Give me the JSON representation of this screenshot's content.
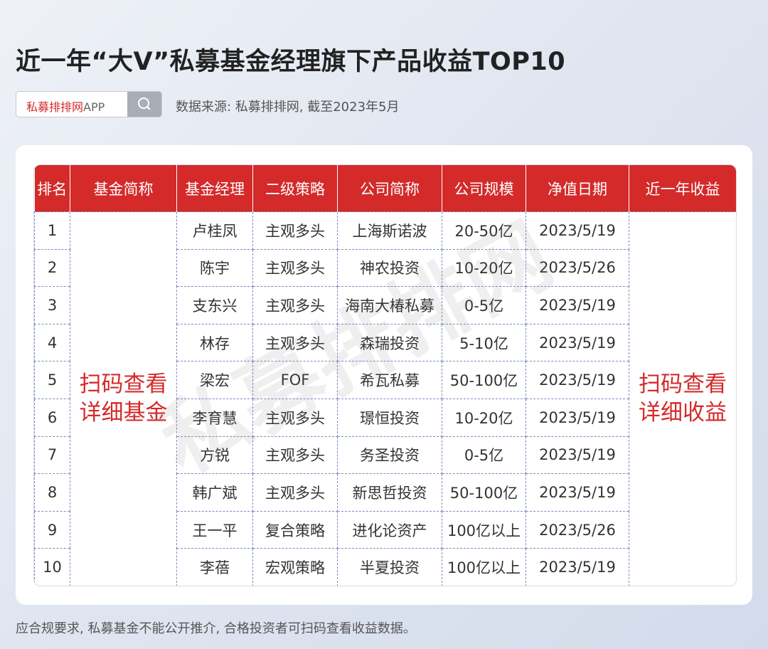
{
  "header": {
    "title": "近一年“大V”私募基金经理旗下产品收益TOP10",
    "search_brand": "私募排排网",
    "search_suffix": "APP",
    "source": "数据来源: 私募排排网, 截至2023年5月"
  },
  "table": {
    "columns": [
      "排名",
      "基金简称",
      "基金经理",
      "二级策略",
      "公司简称",
      "公司规模",
      "净值日期",
      "近一年收益"
    ],
    "fund_name_note": [
      "扫码查看",
      "详细基金"
    ],
    "return_note": [
      "扫码查看",
      "详细收益"
    ],
    "rows": [
      [
        "1",
        "卢桂凤",
        "主观多头",
        "上海斯诺波",
        "20-50亿",
        "2023/5/19"
      ],
      [
        "2",
        "陈宇",
        "主观多头",
        "神农投资",
        "10-20亿",
        "2023/5/26"
      ],
      [
        "3",
        "支东兴",
        "主观多头",
        "海南大椿私募",
        "0-5亿",
        "2023/5/19"
      ],
      [
        "4",
        "林存",
        "主观多头",
        "森瑞投资",
        "5-10亿",
        "2023/5/19"
      ],
      [
        "5",
        "梁宏",
        "FOF",
        "希瓦私募",
        "50-100亿",
        "2023/5/19"
      ],
      [
        "6",
        "李育慧",
        "主观多头",
        "璟恒投资",
        "10-20亿",
        "2023/5/19"
      ],
      [
        "7",
        "方锐",
        "主观多头",
        "务圣投资",
        "0-5亿",
        "2023/5/19"
      ],
      [
        "8",
        "韩广斌",
        "主观多头",
        "新思哲投资",
        "50-100亿",
        "2023/5/19"
      ],
      [
        "9",
        "王一平",
        "复合策略",
        "进化论资产",
        "100亿以上",
        "2023/5/26"
      ],
      [
        "10",
        "李蓓",
        "宏观策略",
        "半夏投资",
        "100亿以上",
        "2023/5/19"
      ]
    ]
  },
  "watermark": "私募排排网",
  "footer": "应合规要求, 私募基金不能公开推介, 合格投资者可扫码查看收益数据。"
}
